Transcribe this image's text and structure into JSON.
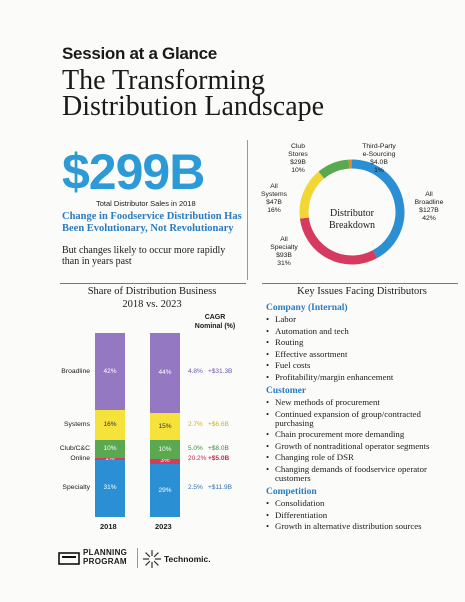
{
  "header": {
    "session": "Session at a Glance",
    "title_line1": "The Transforming",
    "title_line2": "Distribution Landscape"
  },
  "hero": {
    "value": "$299B",
    "caption": "Total Distributor Sales in 2018",
    "subhead": "Change in Foodservice Distribution Has Been Evolutionary, Not Revolutionary",
    "text": "But changes likely to occur more rapidly than in years past"
  },
  "donut": {
    "center_label_line1": "Distributor",
    "center_label_line2": "Breakdown",
    "segments": [
      {
        "line1": "All",
        "line2": "Broadline",
        "line3": "$127B",
        "line4": "42%",
        "value": 42,
        "color": "#2a8fd3"
      },
      {
        "line1": "All",
        "line2": "Specialty",
        "line3": "$93B",
        "line4": "31%",
        "value": 31,
        "color": "#d63a5e"
      },
      {
        "line1": "All",
        "line2": "Systems",
        "line3": "$47B",
        "line4": "16%",
        "value": 16,
        "color": "#f2d634"
      },
      {
        "line1": "Club",
        "line2": "Stores",
        "line3": "$29B",
        "line4": "10%",
        "value": 10,
        "color": "#5aa84f"
      },
      {
        "line1": "Third-Party",
        "line2": "e-Sourcing",
        "line3": "$4.0B",
        "line4": "1%",
        "value": 1,
        "color": "#f07f2d"
      }
    ]
  },
  "chart_data": {
    "type": "bar",
    "title_line1": "Share of Distribution Business",
    "title_line2": "2018 vs. 2023",
    "cagr_header_line1": "CAGR",
    "cagr_header_line2": "Nominal (%)",
    "categories": [
      "2018",
      "2023"
    ],
    "series": [
      {
        "name": "Specialty",
        "values": [
          31,
          29
        ],
        "labels": [
          "31%",
          "29%"
        ],
        "cagr": "2.5%",
        "change": "+$11.9B",
        "color": "#2a8fd3",
        "change_color": "#2a6fb3"
      },
      {
        "name": "Online",
        "values": [
          1,
          3
        ],
        "labels": [
          "1%",
          "3%"
        ],
        "cagr": "20.2%",
        "change": "+$5.0B",
        "color": "#d63a5e",
        "change_color": "#c5264f"
      },
      {
        "name": "Club/C&C",
        "values": [
          10,
          10
        ],
        "labels": [
          "10%",
          "10%"
        ],
        "cagr": "5.0%",
        "change": "+$8.0B",
        "color": "#5aa84f",
        "change_color": "#3f8c3a"
      },
      {
        "name": "Systems",
        "values": [
          16,
          15
        ],
        "labels": [
          "16%",
          "15%"
        ],
        "cagr": "2.7%",
        "change": "+$6.6B",
        "color": "#f5e23b",
        "change_color": "#c9b51c"
      },
      {
        "name": "Broadline",
        "values": [
          42,
          44
        ],
        "labels": [
          "42%",
          "44%"
        ],
        "cagr": "4.8%",
        "change": "+$31.3B",
        "color": "#9479c2",
        "change_color": "#6e56a3"
      }
    ]
  },
  "issues": {
    "title": "Key Issues Facing Distributors",
    "groups": [
      {
        "title": "Company (Internal)",
        "items": [
          "Labor",
          "Automation and tech",
          "Routing",
          "Effective assortment",
          "Fuel costs",
          "Profitability/margin enhancement"
        ]
      },
      {
        "title": "Customer",
        "items": [
          "New methods of procurement",
          "Continued expansion of group/contracted purchasing",
          "Chain procurement more demanding",
          "Growth of nontraditional operator segments",
          "Changing role of DSR",
          "Changing demands of foodservice operator customers"
        ]
      },
      {
        "title": "Competition",
        "items": [
          "Consolidation",
          "Differentiation",
          "Growth in alternative distribution sources"
        ]
      }
    ]
  },
  "footer": {
    "pp_line1": "PLANNING",
    "pp_line2": "PROGRAM",
    "technomic": "Technomic."
  }
}
